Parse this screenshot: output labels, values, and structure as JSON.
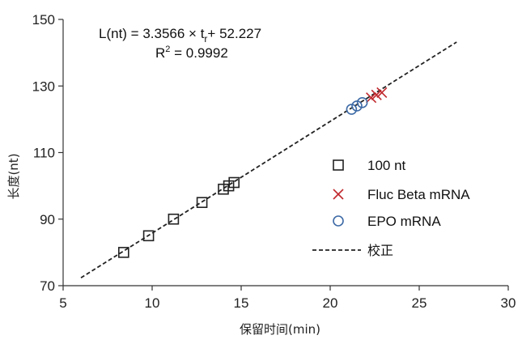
{
  "chart_data": {
    "type": "scatter",
    "xlabel": "保留时间(min)",
    "ylabel": "长度(nt)",
    "xlim": [
      5,
      30
    ],
    "ylim": [
      70,
      150
    ],
    "xticks": [
      5,
      10,
      15,
      20,
      25,
      30
    ],
    "yticks": [
      70,
      90,
      110,
      130,
      150
    ],
    "grid": false,
    "legend_position": "right",
    "equation": {
      "line1_prefix": "L(nt) = 3.3566 × t",
      "line1_sub": "r",
      "line1_suffix": "+ 52.227",
      "line2_prefix": "R",
      "line2_sup": "2",
      "line2_suffix": " = 0.9992"
    },
    "series": [
      {
        "name": "100 nt",
        "marker": "square",
        "color": "#222222",
        "points": [
          [
            8.4,
            80
          ],
          [
            9.8,
            85
          ],
          [
            11.2,
            90
          ],
          [
            12.8,
            95
          ],
          [
            14.0,
            99
          ],
          [
            14.3,
            100
          ],
          [
            14.6,
            101
          ]
        ]
      },
      {
        "name": "Fluc Beta mRNA",
        "marker": "x",
        "color": "#c0282d",
        "points": [
          [
            22.3,
            126.5
          ],
          [
            22.6,
            127.3
          ],
          [
            22.9,
            128
          ]
        ]
      },
      {
        "name": "EPO mRNA",
        "marker": "circle",
        "color": "#3d6aa6",
        "points": [
          [
            21.2,
            123
          ],
          [
            21.5,
            124
          ],
          [
            21.8,
            125
          ]
        ]
      },
      {
        "name": "校正",
        "marker": "line",
        "color": "#222222",
        "slope": 3.3566,
        "intercept": 52.227,
        "x_range": [
          6,
          27.1
        ]
      }
    ]
  }
}
